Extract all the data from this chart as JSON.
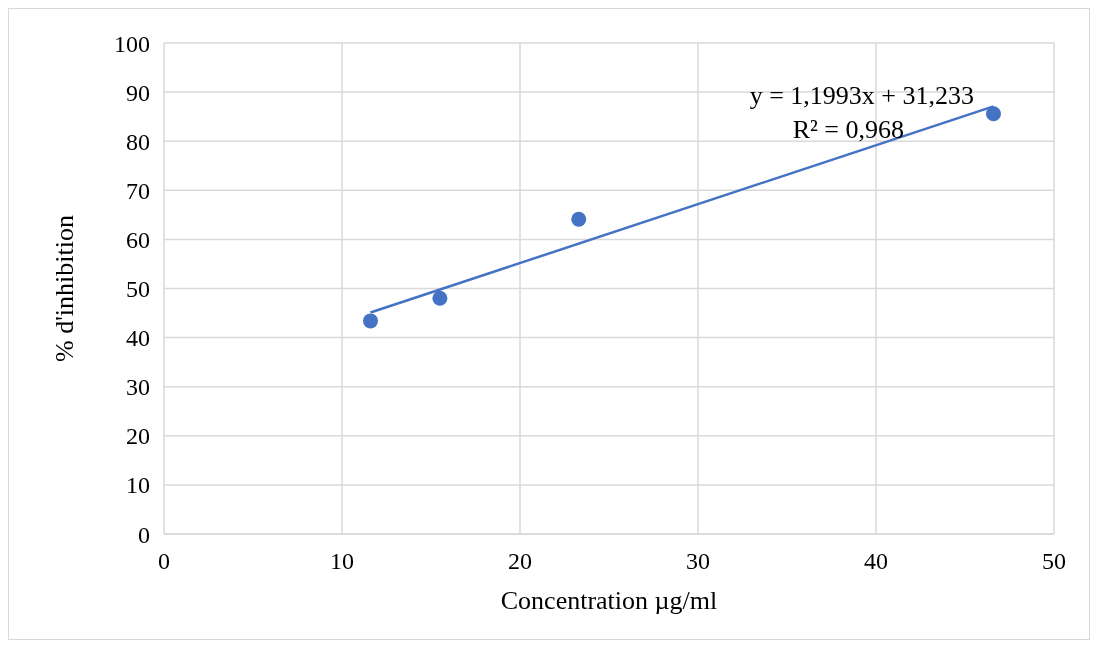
{
  "chart_data": {
    "type": "scatter",
    "xlabel": "Concentration µg/ml",
    "ylabel": "% d'inhibition",
    "xlim": [
      0,
      50
    ],
    "xticks": [
      0,
      10,
      20,
      30,
      40,
      50
    ],
    "ylim": [
      0,
      100
    ],
    "yticks": [
      0,
      10,
      20,
      30,
      40,
      50,
      60,
      70,
      80,
      90,
      100
    ],
    "grid": true,
    "marker": "circle",
    "series": [
      {
        "color": "#4472c4",
        "x": [
          11.6,
          15.5,
          23.3,
          46.6
        ],
        "values": [
          43.4,
          48.0,
          64.1,
          85.6
        ]
      },
      {
        "type": "line",
        "color": "#4472c4",
        "line_style": "solid",
        "marker": "none",
        "x": [
          11.6,
          46.6
        ],
        "values": [
          45.1,
          87.1
        ]
      }
    ],
    "annotations": [
      "y = 1,1993x + 31,233",
      "R² = 0,968"
    ]
  }
}
